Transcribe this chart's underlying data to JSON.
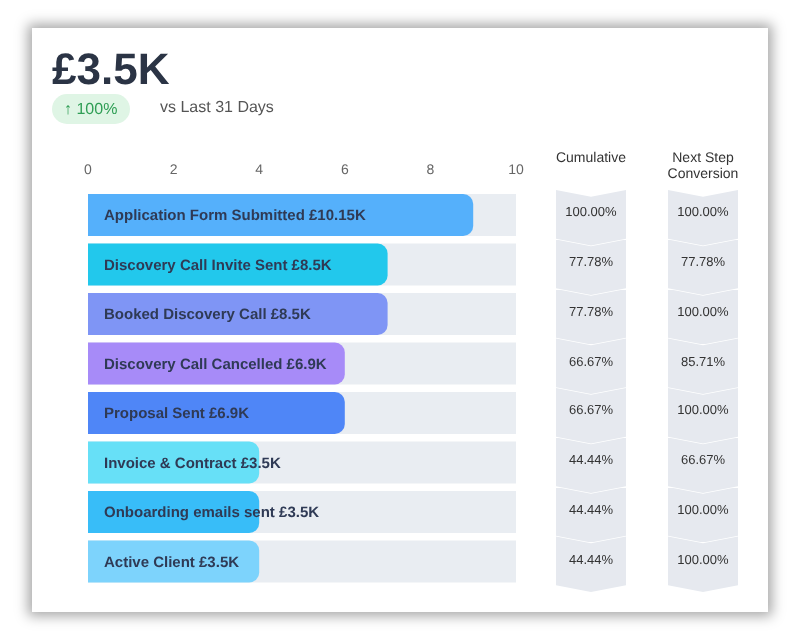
{
  "chart_data": {
    "type": "bar",
    "orientation": "horizontal",
    "title": "£3.5K",
    "subtitle": "↑ 100%",
    "categories": [
      "Application Form Submitted  £10.15K",
      "Discovery Call Invite Sent  £8.5K",
      "Booked Discovery Call  £8.5K",
      "Discovery Call Cancelled  £6.9K",
      "Proposal Sent  £6.9K",
      "Invoice & Contract  £3.5K",
      "Onboarding emails sent  £3.5K",
      "Active Client  £3.5K"
    ],
    "values": [
      9,
      7,
      7,
      6,
      6,
      4,
      4,
      4
    ],
    "colors": [
      "#55b0fb",
      "#22c8ec",
      "#7f95f5",
      "#a78bf8",
      "#4f86f7",
      "#67e0f7",
      "#38bdf8",
      "#7dd3fc"
    ],
    "xlim": [
      0,
      10
    ],
    "xticks": [
      0,
      2,
      4,
      6,
      8,
      10
    ],
    "grid": false,
    "legend": false,
    "annotations": [
      "vs Last 31 Days",
      "Cumulative",
      "100.00%",
      "77.78%",
      "77.78%",
      "66.67%",
      "66.67%",
      "44.44%",
      "44.44%",
      "44.44%",
      "Next Step Conversion",
      "100.00%",
      "77.78%",
      "100.00%",
      "85.71%",
      "100.00%",
      "66.67%",
      "100.00%",
      "100.00%"
    ]
  }
}
